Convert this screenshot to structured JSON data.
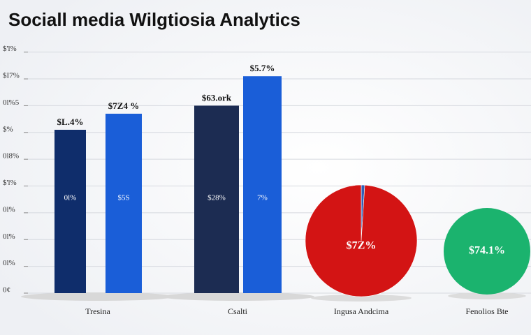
{
  "chart_data": [
    {
      "type": "bar",
      "title": "Sociall media Wilgtiosia Analytics",
      "categories": [
        "Tresina",
        "Csalti"
      ],
      "series": [
        {
          "color": "#0f2d6b",
          "values": [
            6.1,
            7.0
          ],
          "value_labels": [
            "$L.4%",
            "$63.ork"
          ],
          "inner_labels": [
            "0l%",
            "$28%"
          ]
        },
        {
          "color": "#1a5ed8",
          "values": [
            6.7,
            8.1
          ],
          "value_labels": [
            "$7Z4 %",
            "$5.7%"
          ],
          "inner_labels": [
            "$5S",
            "7%"
          ]
        }
      ],
      "ylim": [
        0,
        9.2
      ],
      "yticks": [
        {
          "value": 0,
          "label": "0¢"
        },
        {
          "value": 1,
          "label": "0l%"
        },
        {
          "value": 2,
          "label": "0l%"
        },
        {
          "value": 3,
          "label": "0l%"
        },
        {
          "value": 4,
          "label": "$'l%"
        },
        {
          "value": 5,
          "label": "0l8%"
        },
        {
          "value": 6,
          "label": "$%"
        },
        {
          "value": 7,
          "label": "0l%5"
        },
        {
          "value": 8,
          "label": "$I7%"
        },
        {
          "value": 9,
          "label": "$'l%"
        }
      ],
      "grid": true
    },
    {
      "type": "pie",
      "label": "Ingusa Andcima",
      "center_label": "$7Z%",
      "values": [
        1,
        99
      ],
      "colors": [
        "#2f5fb8",
        "#d31414"
      ]
    },
    {
      "type": "pie",
      "label": "Fenolios Bte",
      "center_label": "$74.1%",
      "values": [
        100
      ],
      "colors": [
        "#1bb36e"
      ]
    }
  ]
}
